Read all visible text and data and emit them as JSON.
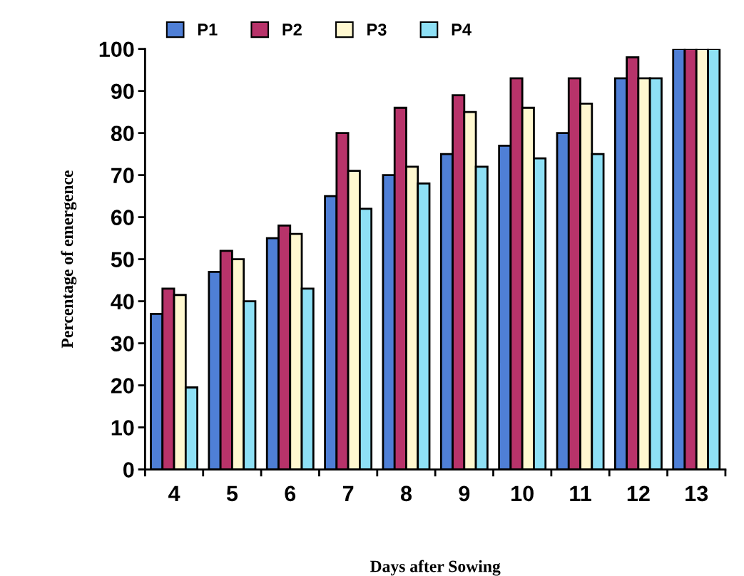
{
  "chart_data": {
    "type": "bar",
    "xlabel": "Days after Sowing",
    "ylabel": "Percentage of emergence",
    "categories": [
      "4",
      "5",
      "6",
      "7",
      "8",
      "9",
      "10",
      "11",
      "12",
      "13"
    ],
    "series": [
      {
        "name": "P1",
        "color": "#4f7fd6",
        "values": [
          37,
          47,
          55,
          65,
          70,
          75,
          77,
          80,
          93,
          100
        ]
      },
      {
        "name": "P2",
        "color": "#b8336a",
        "values": [
          43,
          52,
          58,
          80,
          86,
          89,
          93,
          93,
          98,
          100
        ]
      },
      {
        "name": "P3",
        "color": "#fff8d0",
        "values": [
          41.5,
          50,
          56,
          71,
          72,
          85,
          86,
          87,
          93,
          100
        ]
      },
      {
        "name": "P4",
        "color": "#8ee0f5",
        "values": [
          19.5,
          40,
          43,
          62,
          68,
          72,
          74,
          75,
          93,
          100
        ]
      }
    ],
    "ylim": [
      0,
      100
    ],
    "yticks": [
      0,
      10,
      20,
      30,
      40,
      50,
      60,
      70,
      80,
      90,
      100
    ],
    "grid": false,
    "legend": "top"
  }
}
